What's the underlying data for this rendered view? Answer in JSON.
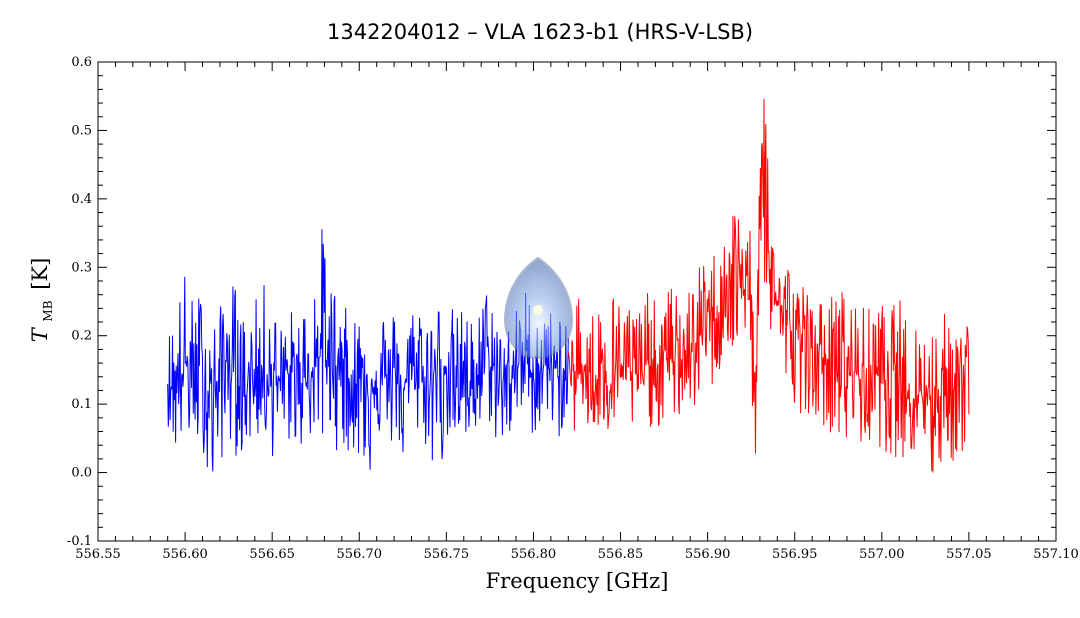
{
  "chart_data": {
    "type": "line",
    "title": "1342204012 – VLA 1623-b1 (HRS-V-LSB)",
    "xlabel": "Frequency [GHz]",
    "ylabel_main": "T",
    "ylabel_sub": "MB",
    "ylabel_unit": "[K]",
    "xlim": [
      556.55,
      557.1
    ],
    "ylim": [
      -0.1,
      0.6
    ],
    "x_ticks": [
      "556.55",
      "556.60",
      "556.65",
      "556.70",
      "556.75",
      "556.80",
      "556.85",
      "556.90",
      "556.95",
      "557.00",
      "557.05",
      "557.10"
    ],
    "y_ticks": [
      "-0.1",
      "0.0",
      "0.1",
      "0.2",
      "0.3",
      "0.4",
      "0.5",
      "0.6"
    ],
    "grid": false,
    "series": [
      {
        "color": "#0000ff",
        "x": [
          556.59,
          556.595,
          556.6,
          556.605,
          556.61,
          556.615,
          556.62,
          556.625,
          556.63,
          556.635,
          556.64,
          556.645,
          556.65,
          556.655,
          556.66,
          556.665,
          556.67,
          556.675,
          556.68,
          556.685,
          556.69,
          556.695,
          556.7,
          556.705,
          556.71,
          556.715,
          556.72,
          556.725,
          556.73,
          556.735,
          556.74,
          556.745,
          556.75,
          556.755,
          556.76,
          556.765,
          556.77,
          556.775,
          556.78,
          556.785,
          556.79,
          556.795,
          556.8,
          556.805,
          556.81,
          556.815,
          556.82
        ],
        "y": [
          0.14,
          0.12,
          0.16,
          0.13,
          0.15,
          0.11,
          0.14,
          0.17,
          0.13,
          0.12,
          0.15,
          0.14,
          0.16,
          0.12,
          0.15,
          0.13,
          0.14,
          0.16,
          0.18,
          0.15,
          0.17,
          0.13,
          0.14,
          0.12,
          0.15,
          0.13,
          0.14,
          0.12,
          0.15,
          0.14,
          0.13,
          0.15,
          0.16,
          0.12,
          0.14,
          0.13,
          0.15,
          0.16,
          0.13,
          0.14,
          0.15,
          0.17,
          0.14,
          0.16,
          0.15,
          0.14,
          0.16
        ],
        "envelope_max": [
          0.2,
          0.26,
          0.3,
          0.25,
          0.28,
          0.22,
          0.24,
          0.3,
          0.27,
          0.22,
          0.25,
          0.28,
          0.25,
          0.22,
          0.24,
          0.24,
          0.26,
          0.32,
          0.38,
          0.28,
          0.26,
          0.22,
          0.25,
          0.2,
          0.27,
          0.24,
          0.24,
          0.22,
          0.24,
          0.28,
          0.24,
          0.25,
          0.3,
          0.22,
          0.26,
          0.22,
          0.26,
          0.28,
          0.24,
          0.22,
          0.24,
          0.28,
          0.24,
          0.25,
          0.24,
          0.25,
          0.2
        ],
        "envelope_min": [
          0.07,
          0.02,
          0.05,
          0.03,
          0.04,
          -0.05,
          0.01,
          0.04,
          0.02,
          0.03,
          0.05,
          0.04,
          0.02,
          0.02,
          0.04,
          0.03,
          0.05,
          0.04,
          0.03,
          0.06,
          -0.01,
          0.04,
          0.01,
          -0.02,
          0.05,
          0.03,
          0.04,
          0.01,
          0.03,
          0.06,
          0.02,
          -0.03,
          0.05,
          0.01,
          0.04,
          0.02,
          0.06,
          0.07,
          0.03,
          0.04,
          0.06,
          0.08,
          0.05,
          0.07,
          0.06,
          0.05,
          0.07
        ]
      },
      {
        "color": "#ff0000",
        "x": [
          556.82,
          556.825,
          556.83,
          556.835,
          556.84,
          556.845,
          556.85,
          556.855,
          556.86,
          556.865,
          556.87,
          556.875,
          556.88,
          556.885,
          556.89,
          556.895,
          556.9,
          556.905,
          556.91,
          556.915,
          556.92,
          556.925,
          556.928,
          556.93,
          556.932,
          556.934,
          556.936,
          556.94,
          556.945,
          556.95,
          556.955,
          556.96,
          556.965,
          556.97,
          556.975,
          556.98,
          556.985,
          556.99,
          556.995,
          557.0,
          557.005,
          557.01,
          557.015,
          557.02,
          557.025,
          557.03,
          557.035,
          557.04,
          557.045,
          557.05
        ],
        "y": [
          0.15,
          0.14,
          0.16,
          0.13,
          0.15,
          0.14,
          0.16,
          0.15,
          0.14,
          0.16,
          0.15,
          0.17,
          0.16,
          0.18,
          0.17,
          0.2,
          0.21,
          0.24,
          0.27,
          0.28,
          0.3,
          0.25,
          0.05,
          0.35,
          0.5,
          0.42,
          0.3,
          0.25,
          0.22,
          0.2,
          0.18,
          0.19,
          0.17,
          0.16,
          0.15,
          0.14,
          0.15,
          0.13,
          0.14,
          0.15,
          0.13,
          0.14,
          0.12,
          0.13,
          0.11,
          0.12,
          0.13,
          0.12,
          0.14,
          0.13
        ],
        "envelope_max": [
          0.22,
          0.28,
          0.26,
          0.24,
          0.27,
          0.28,
          0.25,
          0.26,
          0.25,
          0.27,
          0.25,
          0.26,
          0.28,
          0.28,
          0.27,
          0.3,
          0.34,
          0.32,
          0.37,
          0.4,
          0.38,
          0.35,
          0.2,
          0.5,
          0.58,
          0.55,
          0.4,
          0.34,
          0.32,
          0.3,
          0.28,
          0.28,
          0.25,
          0.26,
          0.28,
          0.26,
          0.28,
          0.24,
          0.25,
          0.25,
          0.24,
          0.26,
          0.22,
          0.23,
          0.22,
          0.22,
          0.24,
          0.22,
          0.25,
          0.23
        ],
        "envelope_min": [
          0.07,
          0.05,
          0.06,
          0.04,
          0.05,
          0.05,
          0.06,
          0.06,
          0.05,
          0.07,
          0.06,
          0.07,
          0.06,
          0.08,
          0.08,
          0.1,
          0.11,
          0.13,
          0.16,
          0.16,
          0.18,
          0.13,
          -0.05,
          0.15,
          0.28,
          0.24,
          0.19,
          0.14,
          0.12,
          0.1,
          0.08,
          0.09,
          0.07,
          0.06,
          0.05,
          0.03,
          0.05,
          0.03,
          0.02,
          0.04,
          0.01,
          0.03,
          0.0,
          0.02,
          -0.02,
          -0.02,
          0.0,
          0.01,
          0.02,
          0.04
        ]
      }
    ]
  }
}
